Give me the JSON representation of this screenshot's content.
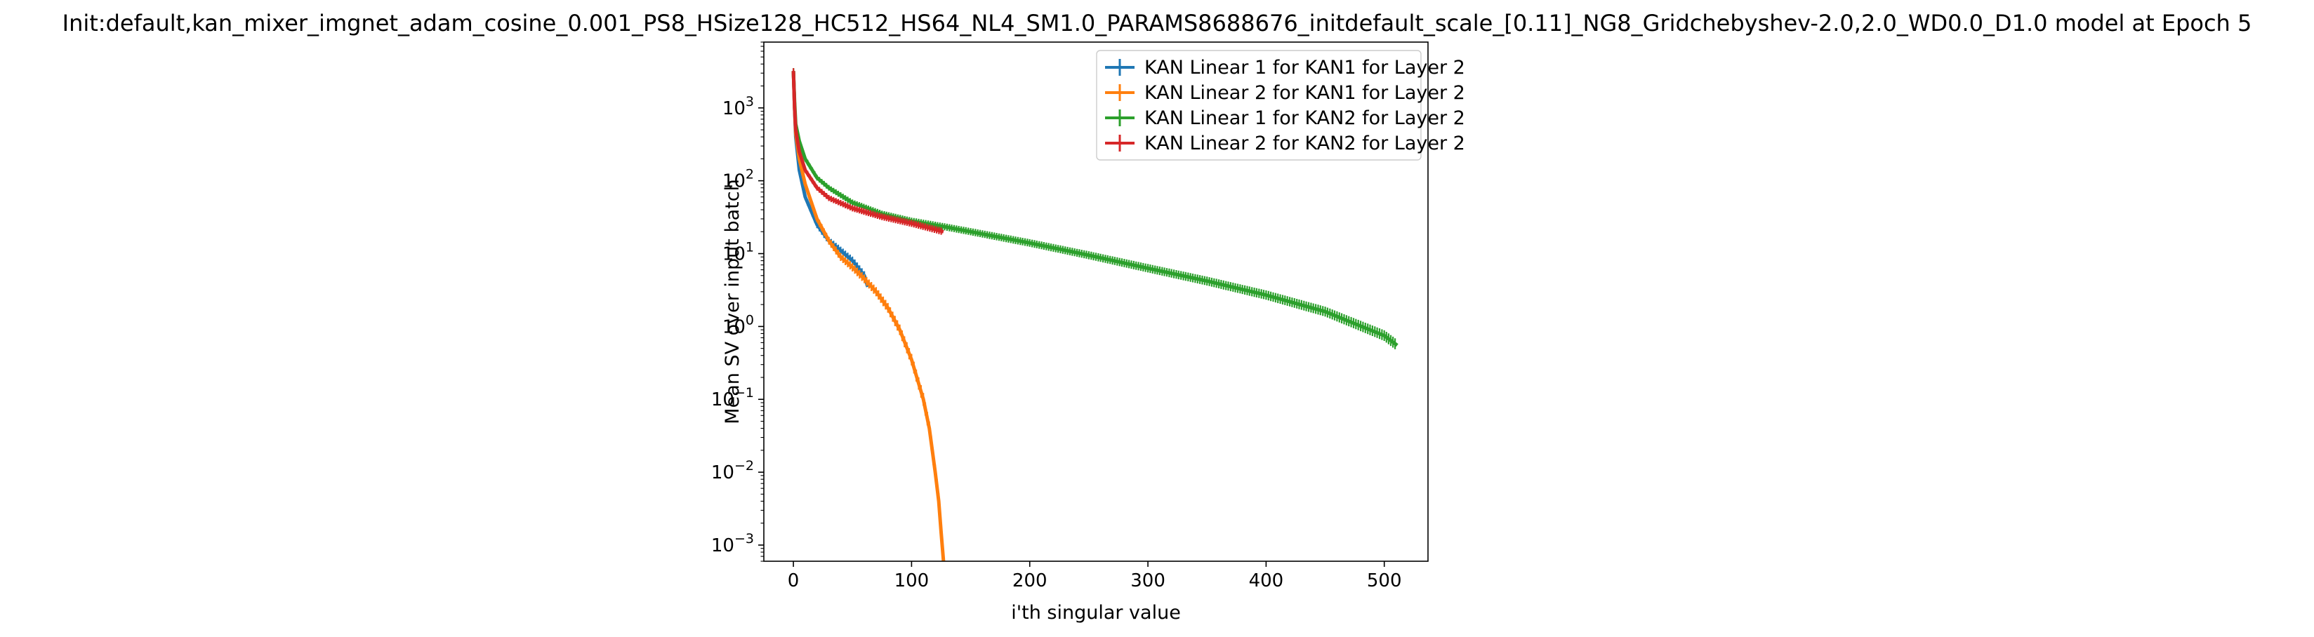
{
  "chart_data": {
    "type": "line",
    "title": "Init:default,kan_mixer_imgnet_adam_cosine_0.001_PS8_HSize128_HC512_HS64_NL4_SM1.0_PARAMS8688676_initdefault_scale_[0.11]_NG8_Gridchebyshev-2.0,2.0_WD0.0_D1.0 model at Epoch 5",
    "xlabel": "i'th singular value",
    "ylabel": "Mean SV over input batch",
    "xlim": [
      -25,
      537
    ],
    "ylim": [
      0.0006,
      8000
    ],
    "yscale": "log",
    "grid": false,
    "legend_loc": "upper right",
    "x_ticks": [
      0,
      100,
      200,
      300,
      400,
      500
    ],
    "y_ticks": [
      {
        "value": 0.001,
        "base": "10",
        "exp": "−3"
      },
      {
        "value": 0.01,
        "base": "10",
        "exp": "−2"
      },
      {
        "value": 0.1,
        "base": "10",
        "exp": "−1"
      },
      {
        "value": 1,
        "base": "10",
        "exp": "0"
      },
      {
        "value": 10,
        "base": "10",
        "exp": "1"
      },
      {
        "value": 100,
        "base": "10",
        "exp": "2"
      },
      {
        "value": 1000,
        "base": "10",
        "exp": "3"
      }
    ],
    "series": [
      {
        "name": "KAN Linear 1 for KAN1 for Layer 2",
        "color": "#1f77b4",
        "x": [
          0,
          1,
          2,
          5,
          10,
          20,
          30,
          40,
          50,
          60,
          63
        ],
        "y": [
          3200,
          1000,
          400,
          140,
          60,
          25,
          15,
          11,
          8,
          5,
          3.5
        ]
      },
      {
        "name": "KAN Linear 2 for KAN1 for Layer 2",
        "color": "#ff7f0e",
        "x": [
          0,
          1,
          2,
          5,
          10,
          20,
          30,
          40,
          50,
          60,
          70,
          80,
          90,
          100,
          110,
          115,
          120,
          123,
          125,
          127
        ],
        "y": [
          3200,
          1000,
          450,
          200,
          90,
          30,
          15,
          9,
          6.5,
          4.5,
          3,
          1.8,
          0.9,
          0.35,
          0.1,
          0.04,
          0.01,
          0.004,
          0.0015,
          0.0006
        ]
      },
      {
        "name": "KAN Linear 1 for KAN2 for Layer 2",
        "color": "#2ca02c",
        "x": [
          0,
          1,
          2,
          5,
          10,
          20,
          30,
          50,
          75,
          100,
          130,
          150,
          200,
          250,
          300,
          350,
          400,
          450,
          500,
          511
        ],
        "y": [
          3200,
          1200,
          600,
          350,
          200,
          110,
          80,
          50,
          35,
          28,
          23,
          20,
          14,
          9.5,
          6.3,
          4.2,
          2.7,
          1.6,
          0.75,
          0.55
        ]
      },
      {
        "name": "KAN Linear 2 for KAN2 for Layer 2",
        "color": "#d62728",
        "x": [
          0,
          1,
          2,
          5,
          10,
          20,
          30,
          50,
          75,
          100,
          127
        ],
        "y": [
          3200,
          1000,
          500,
          250,
          140,
          80,
          58,
          42,
          32,
          26,
          20
        ]
      }
    ]
  }
}
